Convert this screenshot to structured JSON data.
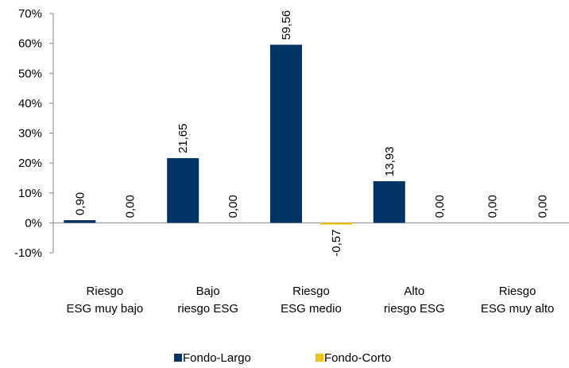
{
  "chart_data": {
    "type": "bar",
    "categories": [
      [
        "Riesgo",
        "ESG muy bajo"
      ],
      [
        "Bajo",
        "riesgo ESG"
      ],
      [
        "Riesgo",
        "ESG medio"
      ],
      [
        "Alto",
        "riesgo ESG"
      ],
      [
        "Riesgo",
        "ESG muy alto"
      ]
    ],
    "series": [
      {
        "name": "Fondo-Largo",
        "color": "#003366",
        "values": [
          0.9,
          21.65,
          59.56,
          13.93,
          0.0
        ],
        "labels": [
          "0,90",
          "21,65",
          "59,56",
          "13,93",
          "0,00"
        ]
      },
      {
        "name": "Fondo-Corto",
        "color": "#F5C400",
        "values": [
          0.0,
          0.0,
          -0.57,
          0.0,
          0.0
        ],
        "labels": [
          "0,00",
          "0,00",
          "-0,57",
          "0,00",
          "0,00"
        ]
      }
    ],
    "ylim": [
      -10,
      70
    ],
    "yticks": [
      "-10%",
      "0%",
      "10%",
      "20%",
      "30%",
      "40%",
      "50%",
      "60%",
      "70%"
    ],
    "legend_position": "bottom",
    "grid": false
  }
}
